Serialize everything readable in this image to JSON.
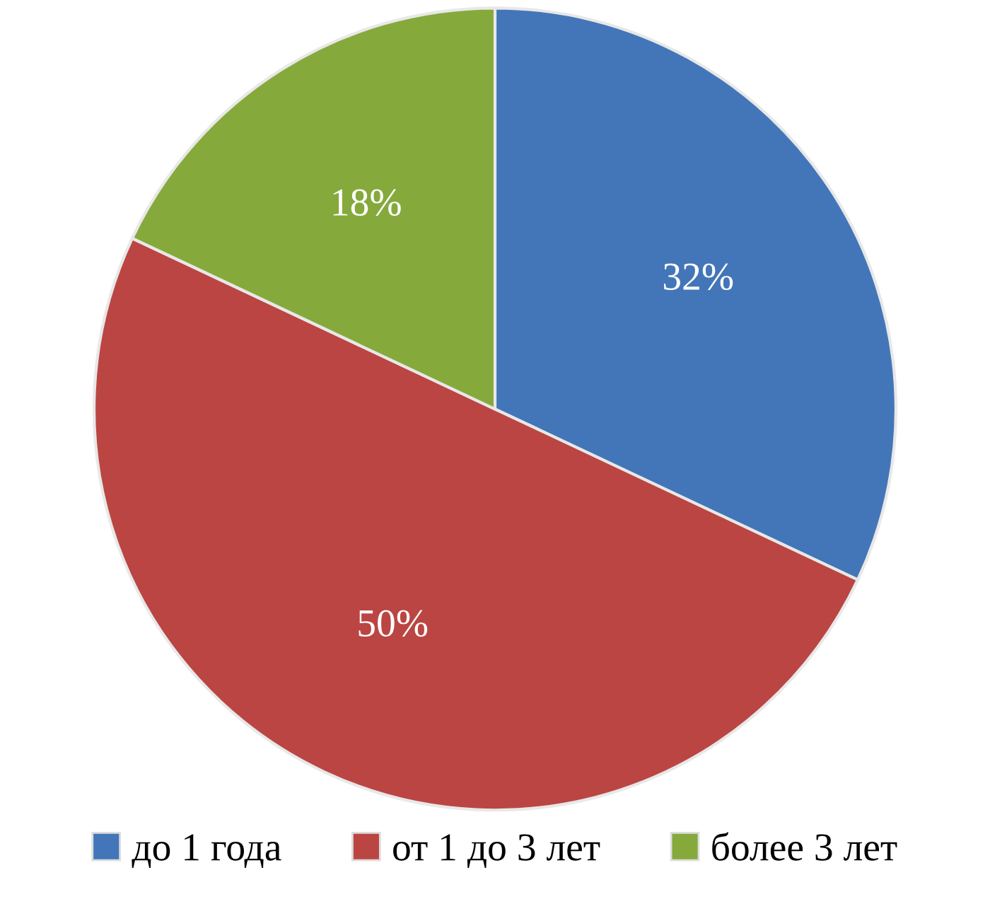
{
  "chart_data": {
    "type": "pie",
    "categories": [
      "до 1 года",
      "от 1 до 3 лет",
      "более 3 лет"
    ],
    "values": [
      32,
      50,
      18
    ],
    "colors": [
      "#4376b8",
      "#bb4542",
      "#86a93c"
    ],
    "value_labels": [
      "32%",
      "50%",
      "18%"
    ],
    "legend": "bottom"
  }
}
